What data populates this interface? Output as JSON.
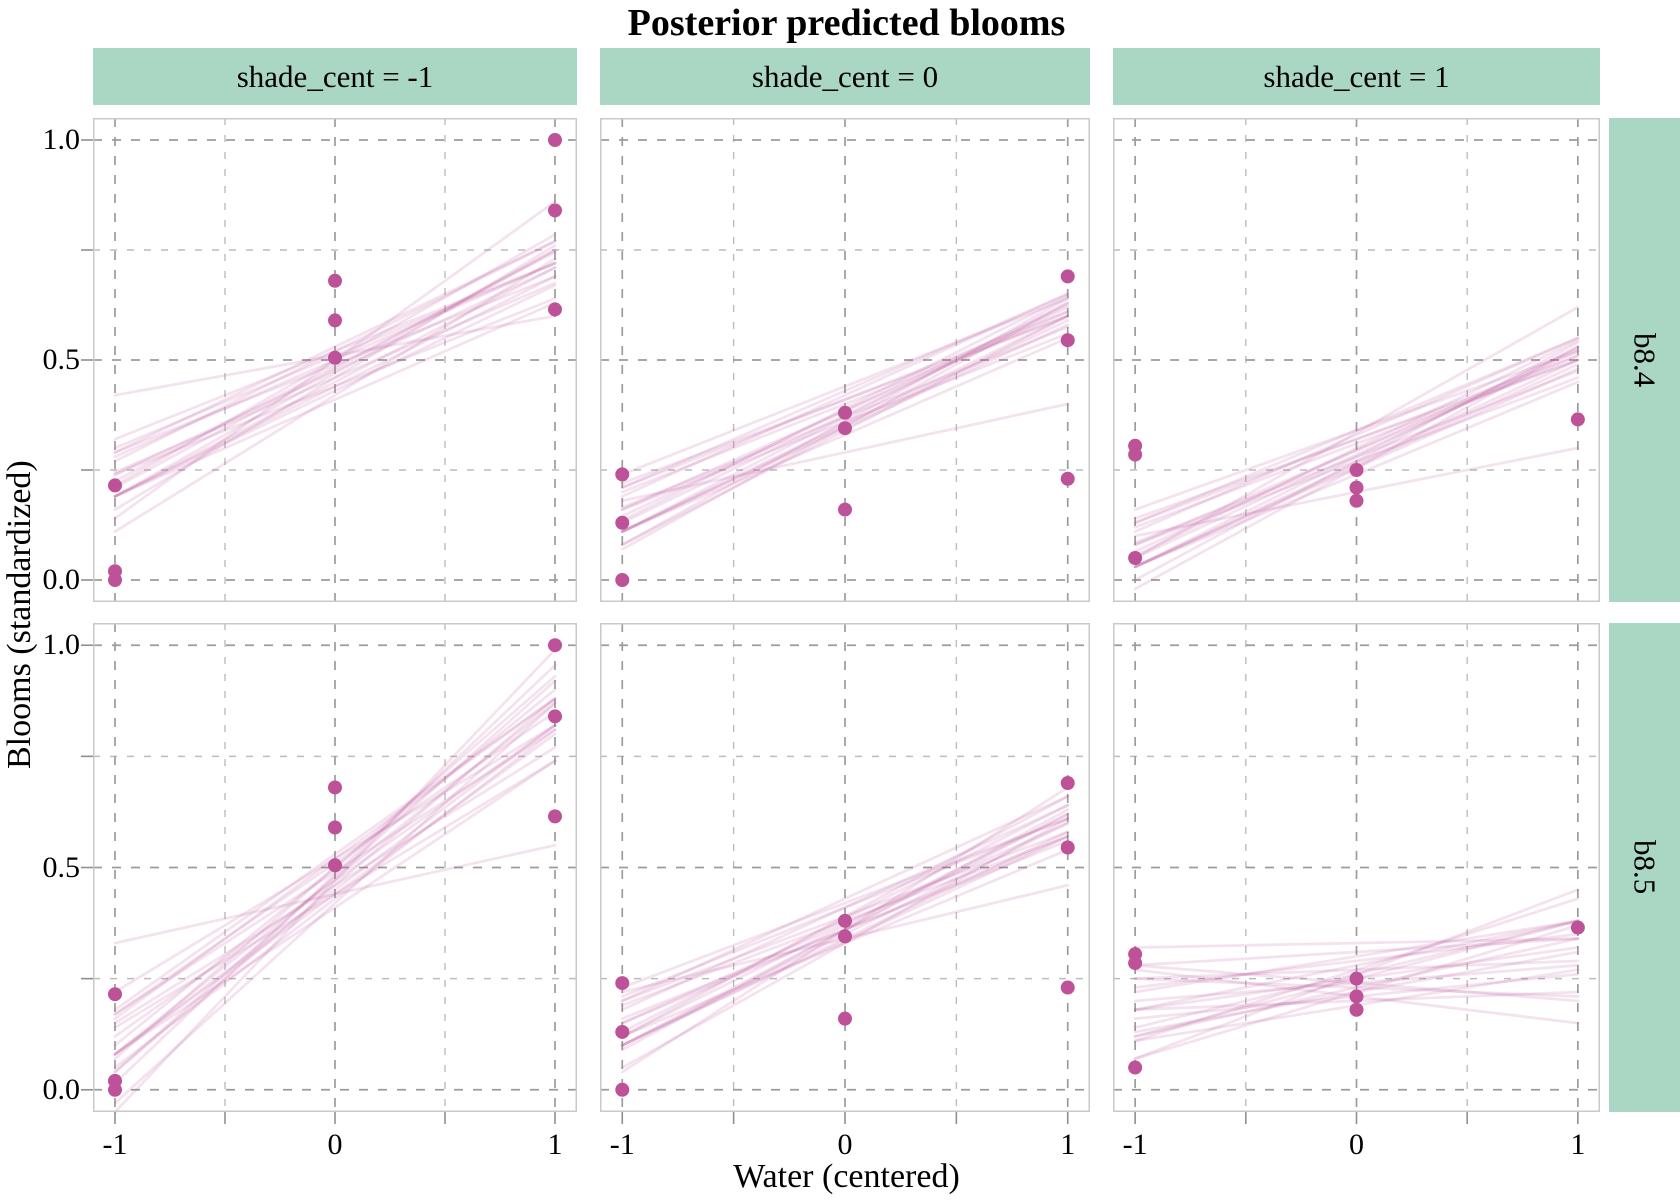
{
  "title": "Posterior predicted blooms",
  "axes": {
    "x_title": "Water (centered)",
    "y_title": "Blooms (standardized)",
    "x_ticks": [
      "-1",
      "0",
      "1"
    ],
    "x_tick_values": [
      -1,
      0,
      1
    ],
    "x_minor_values": [
      -0.5,
      0.5
    ],
    "y_ticks": [
      "1.0",
      "0.5",
      "0.0"
    ],
    "y_tick_values": [
      1.0,
      0.5,
      0.0
    ],
    "y_minor_values": [
      0.25,
      0.75
    ],
    "x_range": [
      -1,
      1
    ],
    "y_range": [
      0,
      1
    ],
    "grid": "dashed"
  },
  "facets": {
    "columns": [
      "shade_cent = -1",
      "shade_cent = 0",
      "shade_cent = 1"
    ],
    "rows": [
      "b8.4",
      "b8.5"
    ]
  },
  "colors": {
    "strip_bg": "#aad7c3",
    "point": "#bd5299",
    "line": "#bd5299",
    "grid_major": "#9c9c9c",
    "grid_minor": "#bcbcbc",
    "panel_border": "#c9c9c9",
    "tick": "#8f8f8f",
    "text": "#000000"
  },
  "chart_data": [
    {
      "type": "scatter",
      "row": "b8.4",
      "col": "shade_cent = -1",
      "row_index": 0,
      "col_index": 0,
      "points": [
        [
          -1,
          0.215
        ],
        [
          -1,
          0.02
        ],
        [
          -1,
          0.0
        ],
        [
          0,
          0.68
        ],
        [
          0,
          0.59
        ],
        [
          0,
          0.505
        ],
        [
          1,
          1.0
        ],
        [
          1,
          0.84
        ],
        [
          1,
          0.615
        ]
      ],
      "lines": [
        [
          0.24,
          0.64
        ],
        [
          0.21,
          0.75
        ],
        [
          0.28,
          0.72
        ],
        [
          0.16,
          0.76
        ],
        [
          0.27,
          0.77
        ],
        [
          0.19,
          0.67
        ],
        [
          0.29,
          0.69
        ],
        [
          0.19,
          0.75
        ],
        [
          0.3,
          0.72
        ],
        [
          0.19,
          0.71
        ],
        [
          0.24,
          0.71
        ],
        [
          0.11,
          0.73
        ],
        [
          0.29,
          0.77
        ],
        [
          0.245,
          0.675
        ],
        [
          0.215,
          0.785
        ],
        [
          0.19,
          0.69
        ],
        [
          0.225,
          0.745
        ],
        [
          0.19,
          0.63
        ],
        [
          0.32,
          0.72
        ],
        [
          0.14,
          0.86
        ],
        [
          0.42,
          0.6
        ]
      ]
    },
    {
      "type": "scatter",
      "row": "b8.4",
      "col": "shade_cent = 0",
      "row_index": 0,
      "col_index": 1,
      "points": [
        [
          -1,
          0.24
        ],
        [
          -1,
          0.13
        ],
        [
          -1,
          0.0
        ],
        [
          0,
          0.38
        ],
        [
          0,
          0.345
        ],
        [
          0,
          0.16
        ],
        [
          1,
          0.69
        ],
        [
          1,
          0.545
        ],
        [
          1,
          0.23
        ]
      ],
      "lines": [
        [
          0.16,
          0.56
        ],
        [
          0.13,
          0.62
        ],
        [
          0.2,
          0.6
        ],
        [
          0.08,
          0.64
        ],
        [
          0.19,
          0.65
        ],
        [
          0.11,
          0.59
        ],
        [
          0.21,
          0.61
        ],
        [
          0.11,
          0.63
        ],
        [
          0.22,
          0.6
        ],
        [
          0.11,
          0.6
        ],
        [
          0.16,
          0.61
        ],
        [
          0.07,
          0.63
        ],
        [
          0.21,
          0.65
        ],
        [
          0.165,
          0.575
        ],
        [
          0.135,
          0.645
        ],
        [
          0.11,
          0.58
        ],
        [
          0.145,
          0.625
        ],
        [
          0.11,
          0.55
        ],
        [
          0.24,
          0.64
        ],
        [
          0.18,
          0.4
        ],
        [
          0.08,
          0.6
        ]
      ]
    },
    {
      "type": "scatter",
      "row": "b8.4",
      "col": "shade_cent = 1",
      "row_index": 0,
      "col_index": 2,
      "points": [
        [
          -1,
          0.305
        ],
        [
          -1,
          0.285
        ],
        [
          -1,
          0.05
        ],
        [
          0,
          0.25
        ],
        [
          0,
          0.21
        ],
        [
          0,
          0.18
        ],
        [
          1,
          0.365
        ]
      ],
      "lines": [
        [
          0.08,
          0.46
        ],
        [
          0.05,
          0.52
        ],
        [
          0.12,
          0.5
        ],
        [
          0.0,
          0.54
        ],
        [
          0.11,
          0.55
        ],
        [
          0.03,
          0.49
        ],
        [
          0.13,
          0.51
        ],
        [
          0.03,
          0.53
        ],
        [
          0.14,
          0.5
        ],
        [
          0.03,
          0.5
        ],
        [
          0.08,
          0.51
        ],
        [
          -0.02,
          0.53
        ],
        [
          0.13,
          0.55
        ],
        [
          0.085,
          0.475
        ],
        [
          0.055,
          0.545
        ],
        [
          0.03,
          0.48
        ],
        [
          0.065,
          0.525
        ],
        [
          0.03,
          0.45
        ],
        [
          0.16,
          0.52
        ],
        [
          0.1,
          0.3
        ],
        [
          0.05,
          0.62
        ]
      ]
    },
    {
      "type": "scatter",
      "row": "b8.5",
      "col": "shade_cent = -1",
      "row_index": 1,
      "col_index": 0,
      "points": [
        [
          -1,
          0.215
        ],
        [
          -1,
          0.02
        ],
        [
          -1,
          0.0
        ],
        [
          0,
          0.68
        ],
        [
          0,
          0.59
        ],
        [
          0,
          0.505
        ],
        [
          1,
          1.0
        ],
        [
          1,
          0.84
        ],
        [
          1,
          0.615
        ]
      ],
      "lines": [
        [
          0.12,
          0.82
        ],
        [
          0.1,
          0.9
        ],
        [
          0.14,
          0.74
        ],
        [
          0.04,
          0.92
        ],
        [
          0.16,
          0.88
        ],
        [
          0.05,
          0.81
        ],
        [
          0.17,
          0.81
        ],
        [
          0.04,
          0.88
        ],
        [
          0.17,
          0.85
        ],
        [
          0.08,
          0.82
        ],
        [
          0.08,
          0.87
        ],
        [
          -0.03,
          0.87
        ],
        [
          0.18,
          0.88
        ],
        [
          0.15,
          0.77
        ],
        [
          0.07,
          0.93
        ],
        [
          0.08,
          0.8
        ],
        [
          0.015,
          0.955
        ],
        [
          0.08,
          0.74
        ],
        [
          0.22,
          0.82
        ],
        [
          -0.05,
          0.99
        ],
        [
          0.33,
          0.55
        ]
      ]
    },
    {
      "type": "scatter",
      "row": "b8.5",
      "col": "shade_cent = 0",
      "row_index": 1,
      "col_index": 1,
      "points": [
        [
          -1,
          0.24
        ],
        [
          -1,
          0.13
        ],
        [
          -1,
          0.0
        ],
        [
          0,
          0.38
        ],
        [
          0,
          0.345
        ],
        [
          0,
          0.16
        ],
        [
          1,
          0.69
        ],
        [
          1,
          0.545
        ],
        [
          1,
          0.23
        ]
      ],
      "lines": [
        [
          0.15,
          0.57
        ],
        [
          0.12,
          0.62
        ],
        [
          0.19,
          0.57
        ],
        [
          0.09,
          0.63
        ],
        [
          0.18,
          0.64
        ],
        [
          0.1,
          0.58
        ],
        [
          0.2,
          0.58
        ],
        [
          0.1,
          0.62
        ],
        [
          0.21,
          0.61
        ],
        [
          0.1,
          0.6
        ],
        [
          0.15,
          0.6
        ],
        [
          0.05,
          0.61
        ],
        [
          0.2,
          0.66
        ],
        [
          0.16,
          0.56
        ],
        [
          0.12,
          0.66
        ],
        [
          0.1,
          0.57
        ],
        [
          0.13,
          0.64
        ],
        [
          0.12,
          0.54
        ],
        [
          0.23,
          0.61
        ],
        [
          0.04,
          0.68
        ],
        [
          0.22,
          0.46
        ]
      ]
    },
    {
      "type": "scatter",
      "row": "b8.5",
      "col": "shade_cent = 1",
      "row_index": 1,
      "col_index": 2,
      "points": [
        [
          -1,
          0.305
        ],
        [
          -1,
          0.285
        ],
        [
          -1,
          0.05
        ],
        [
          0,
          0.25
        ],
        [
          0,
          0.21
        ],
        [
          0,
          0.18
        ],
        [
          1,
          0.365
        ]
      ],
      "lines": [
        [
          0.18,
          0.32
        ],
        [
          0.07,
          0.37
        ],
        [
          0.25,
          0.29
        ],
        [
          0.28,
          0.2
        ],
        [
          0.18,
          0.38
        ],
        [
          0.16,
          0.26
        ],
        [
          0.14,
          0.38
        ],
        [
          0.25,
          0.21
        ],
        [
          0.23,
          0.35
        ],
        [
          0.13,
          0.31
        ],
        [
          0.12,
          0.38
        ],
        [
          0.18,
          0.22
        ],
        [
          0.22,
          0.38
        ],
        [
          0.2,
          0.28
        ],
        [
          0.11,
          0.43
        ],
        [
          0.27,
          0.15
        ],
        [
          0.07,
          0.45
        ],
        [
          0.12,
          0.34
        ],
        [
          0.28,
          0.34
        ],
        [
          0.11,
          0.27
        ],
        [
          0.32,
          0.34
        ]
      ]
    }
  ]
}
